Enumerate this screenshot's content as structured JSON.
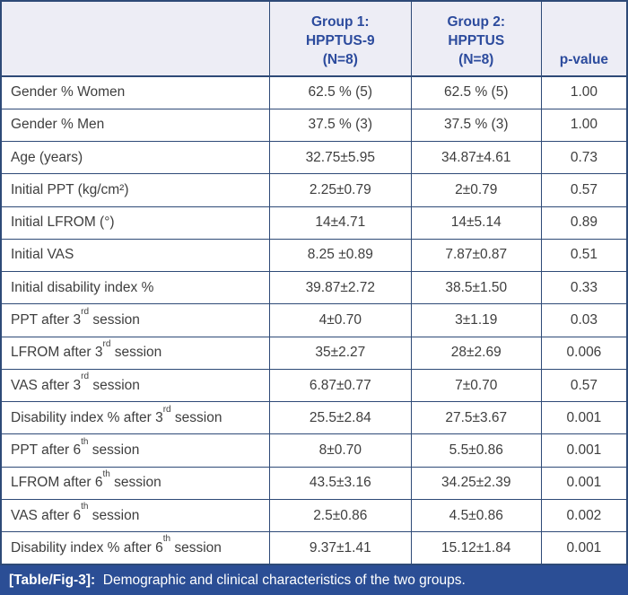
{
  "table": {
    "header": {
      "col0": "",
      "col1": "Group 1:\nHPPTUS-9\n(N=8)",
      "col2": "Group 2:\nHPPTUS\n(N=8)",
      "col3": "p-value"
    },
    "rows": [
      {
        "pre": "Gender % Women",
        "sup": "",
        "post": "",
        "g1": "62.5 % (5)",
        "g2": "62.5 % (5)",
        "p": "1.00"
      },
      {
        "pre": "Gender % Men",
        "sup": "",
        "post": "",
        "g1": "37.5 % (3)",
        "g2": "37.5 % (3)",
        "p": "1.00"
      },
      {
        "pre": "Age (years)",
        "sup": "",
        "post": "",
        "g1": "32.75±5.95",
        "g2": "34.87±4.61",
        "p": "0.73"
      },
      {
        "pre": "Initial PPT (kg/cm²)",
        "sup": "",
        "post": "",
        "g1": "2.25±0.79",
        "g2": "2±0.79",
        "p": "0.57"
      },
      {
        "pre": "Initial LFROM (°)",
        "sup": "",
        "post": "",
        "g1": "14±4.71",
        "g2": "14±5.14",
        "p": "0.89"
      },
      {
        "pre": "Initial VAS",
        "sup": "",
        "post": "",
        "g1": "8.25 ±0.89",
        "g2": "7.87±0.87",
        "p": "0.51"
      },
      {
        "pre": "Initial disability index %",
        "sup": "",
        "post": "",
        "g1": "39.87±2.72",
        "g2": "38.5±1.50",
        "p": "0.33"
      },
      {
        "pre": "PPT after 3",
        "sup": "rd",
        "post": " session",
        "g1": "4±0.70",
        "g2": "3±1.19",
        "p": "0.03"
      },
      {
        "pre": "LFROM after 3",
        "sup": "rd",
        "post": " session",
        "g1": "35±2.27",
        "g2": "28±2.69",
        "p": "0.006"
      },
      {
        "pre": "VAS after 3",
        "sup": "rd",
        "post": " session",
        "g1": "6.87±0.77",
        "g2": "7±0.70",
        "p": "0.57"
      },
      {
        "pre": "Disability index % after 3",
        "sup": "rd",
        "post": " session",
        "g1": "25.5±2.84",
        "g2": "27.5±3.67",
        "p": "0.001"
      },
      {
        "pre": "PPT after 6",
        "sup": "th",
        "post": " session",
        "g1": "8±0.70",
        "g2": "5.5±0.86",
        "p": "0.001"
      },
      {
        "pre": "LFROM after 6",
        "sup": "th",
        "post": " session",
        "g1": "43.5±3.16",
        "g2": "34.25±2.39",
        "p": "0.001"
      },
      {
        "pre": "VAS after 6",
        "sup": "th",
        "post": " session",
        "g1": "2.5±0.86",
        "g2": "4.5±0.86",
        "p": "0.002"
      },
      {
        "pre": "Disability index % after 6",
        "sup": "th",
        "post": " session",
        "g1": "9.37±1.41",
        "g2": "15.12±1.84",
        "p": "0.001"
      }
    ]
  },
  "caption": {
    "tag": "[Table/Fig-3]:",
    "text": "  Demographic and clinical characteristics of the two groups."
  },
  "colors": {
    "border": "#2e4a77",
    "header_bg": "#ededf5",
    "header_text": "#2c4b9d",
    "caption_bg": "#2b4e95",
    "caption_text": "#ffffff",
    "body_text": "#3e3e3e"
  }
}
